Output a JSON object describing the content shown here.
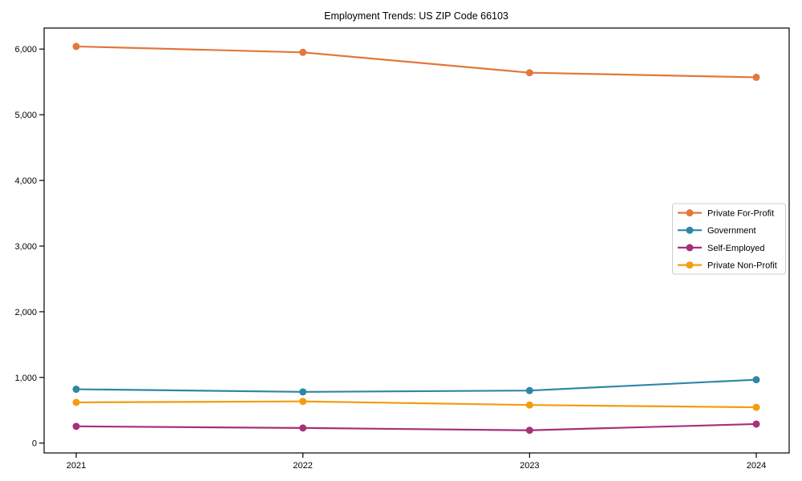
{
  "chart_data": {
    "type": "line",
    "title": "Employment Trends: US ZIP Code 66103",
    "categories": [
      "2021",
      "2022",
      "2023",
      "2024"
    ],
    "series": [
      {
        "name": "Private For-Profit",
        "color": "#e2773b",
        "values": [
          6040,
          5950,
          5640,
          5570
        ]
      },
      {
        "name": "Government",
        "color": "#2e87a5",
        "values": [
          820,
          780,
          800,
          965
        ]
      },
      {
        "name": "Self-Employed",
        "color": "#a5317a",
        "values": [
          255,
          230,
          195,
          290
        ]
      },
      {
        "name": "Private Non-Profit",
        "color": "#f39c0f",
        "values": [
          620,
          635,
          580,
          545
        ]
      }
    ],
    "xlabel": "",
    "ylabel": "",
    "ylim": [
      -150,
      6320
    ],
    "y_ticks": [
      0,
      1000,
      2000,
      3000,
      4000,
      5000,
      6000
    ],
    "y_tick_labels": [
      "0",
      "1,000",
      "2,000",
      "3,000",
      "4,000",
      "5,000",
      "6,000"
    ],
    "grid": false,
    "legend_position": "center-right",
    "marker": "circle",
    "axis_color": "#000000",
    "legend_border_color": "#cccccc",
    "legend_background": "#ffffff"
  }
}
